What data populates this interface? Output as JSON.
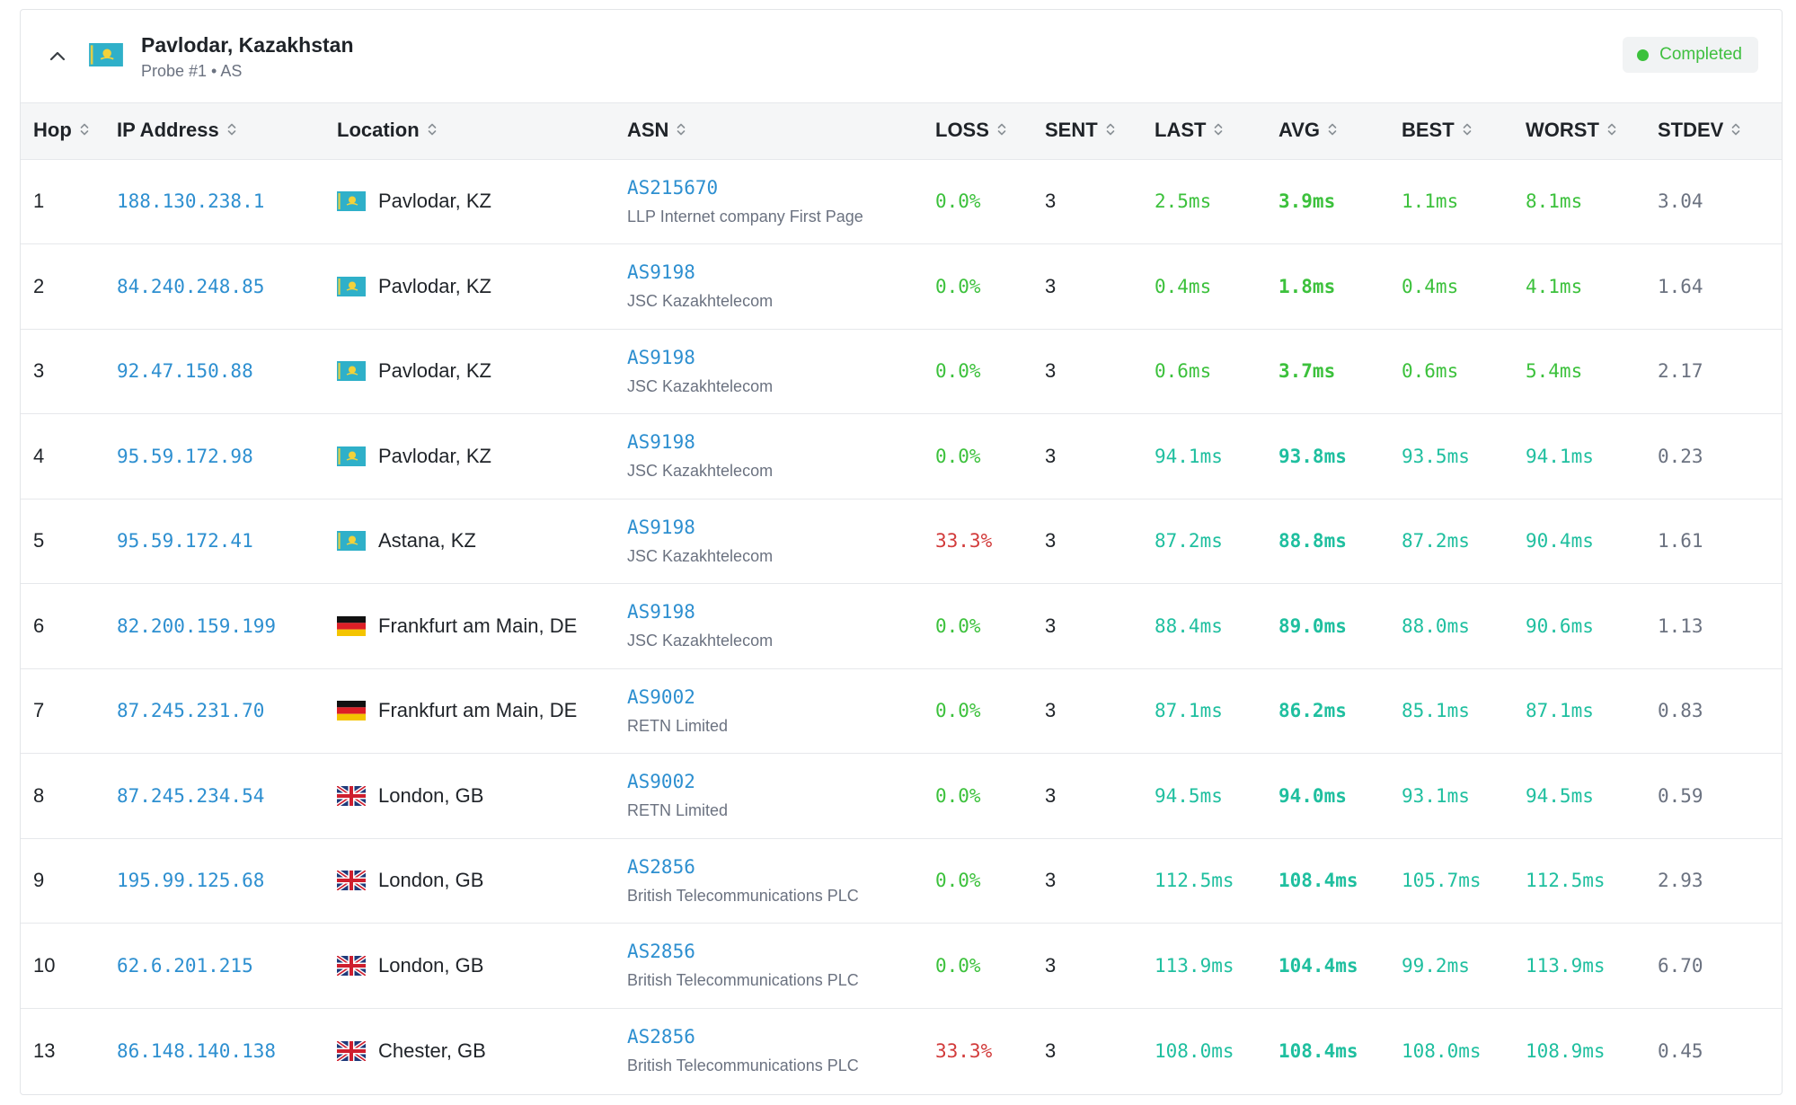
{
  "header": {
    "title": "Pavlodar, Kazakhstan",
    "subtitle": "Probe #1 • AS",
    "status": "Completed",
    "flag": "kz"
  },
  "colors": {
    "link": "#2d8fd0",
    "loss_good": "#3cc13c",
    "loss_bad": "#d23b3b",
    "latency_low": "#3cc13c",
    "latency_high": "#1fbf9f",
    "stdev": "#6b7280"
  },
  "columns": [
    "Hop",
    "IP Address",
    "Location",
    "ASN",
    "LOSS",
    "SENT",
    "LAST",
    "AVG",
    "BEST",
    "WORST",
    "STDEV"
  ],
  "rows": [
    {
      "hop": "1",
      "ip": "188.130.238.1",
      "flag": "kz",
      "location": "Pavlodar, KZ",
      "asn": "AS215670",
      "asn_name": "LLP Internet company First Page",
      "loss": "0.0%",
      "sent": "3",
      "last": "2.5ms",
      "avg": "3.9ms",
      "best": "1.1ms",
      "worst": "8.1ms",
      "stdev": "3.04",
      "loss_level": "good",
      "latency_level": "low"
    },
    {
      "hop": "2",
      "ip": "84.240.248.85",
      "flag": "kz",
      "location": "Pavlodar, KZ",
      "asn": "AS9198",
      "asn_name": "JSC Kazakhtelecom",
      "loss": "0.0%",
      "sent": "3",
      "last": "0.4ms",
      "avg": "1.8ms",
      "best": "0.4ms",
      "worst": "4.1ms",
      "stdev": "1.64",
      "loss_level": "good",
      "latency_level": "low"
    },
    {
      "hop": "3",
      "ip": "92.47.150.88",
      "flag": "kz",
      "location": "Pavlodar, KZ",
      "asn": "AS9198",
      "asn_name": "JSC Kazakhtelecom",
      "loss": "0.0%",
      "sent": "3",
      "last": "0.6ms",
      "avg": "3.7ms",
      "best": "0.6ms",
      "worst": "5.4ms",
      "stdev": "2.17",
      "loss_level": "good",
      "latency_level": "low"
    },
    {
      "hop": "4",
      "ip": "95.59.172.98",
      "flag": "kz",
      "location": "Pavlodar, KZ",
      "asn": "AS9198",
      "asn_name": "JSC Kazakhtelecom",
      "loss": "0.0%",
      "sent": "3",
      "last": "94.1ms",
      "avg": "93.8ms",
      "best": "93.5ms",
      "worst": "94.1ms",
      "stdev": "0.23",
      "loss_level": "good",
      "latency_level": "high"
    },
    {
      "hop": "5",
      "ip": "95.59.172.41",
      "flag": "kz",
      "location": "Astana, KZ",
      "asn": "AS9198",
      "asn_name": "JSC Kazakhtelecom",
      "loss": "33.3%",
      "sent": "3",
      "last": "87.2ms",
      "avg": "88.8ms",
      "best": "87.2ms",
      "worst": "90.4ms",
      "stdev": "1.61",
      "loss_level": "bad",
      "latency_level": "high"
    },
    {
      "hop": "6",
      "ip": "82.200.159.199",
      "flag": "de",
      "location": "Frankfurt am Main, DE",
      "asn": "AS9198",
      "asn_name": "JSC Kazakhtelecom",
      "loss": "0.0%",
      "sent": "3",
      "last": "88.4ms",
      "avg": "89.0ms",
      "best": "88.0ms",
      "worst": "90.6ms",
      "stdev": "1.13",
      "loss_level": "good",
      "latency_level": "high"
    },
    {
      "hop": "7",
      "ip": "87.245.231.70",
      "flag": "de",
      "location": "Frankfurt am Main, DE",
      "asn": "AS9002",
      "asn_name": "RETN Limited",
      "loss": "0.0%",
      "sent": "3",
      "last": "87.1ms",
      "avg": "86.2ms",
      "best": "85.1ms",
      "worst": "87.1ms",
      "stdev": "0.83",
      "loss_level": "good",
      "latency_level": "high"
    },
    {
      "hop": "8",
      "ip": "87.245.234.54",
      "flag": "gb",
      "location": "London, GB",
      "asn": "AS9002",
      "asn_name": "RETN Limited",
      "loss": "0.0%",
      "sent": "3",
      "last": "94.5ms",
      "avg": "94.0ms",
      "best": "93.1ms",
      "worst": "94.5ms",
      "stdev": "0.59",
      "loss_level": "good",
      "latency_level": "high"
    },
    {
      "hop": "9",
      "ip": "195.99.125.68",
      "flag": "gb",
      "location": "London, GB",
      "asn": "AS2856",
      "asn_name": "British Telecommunications PLC",
      "loss": "0.0%",
      "sent": "3",
      "last": "112.5ms",
      "avg": "108.4ms",
      "best": "105.7ms",
      "worst": "112.5ms",
      "stdev": "2.93",
      "loss_level": "good",
      "latency_level": "high"
    },
    {
      "hop": "10",
      "ip": "62.6.201.215",
      "flag": "gb",
      "location": "London, GB",
      "asn": "AS2856",
      "asn_name": "British Telecommunications PLC",
      "loss": "0.0%",
      "sent": "3",
      "last": "113.9ms",
      "avg": "104.4ms",
      "best": "99.2ms",
      "worst": "113.9ms",
      "stdev": "6.70",
      "loss_level": "good",
      "latency_level": "high"
    },
    {
      "hop": "13",
      "ip": "86.148.140.138",
      "flag": "gb",
      "location": "Chester, GB",
      "asn": "AS2856",
      "asn_name": "British Telecommunications PLC",
      "loss": "33.3%",
      "sent": "3",
      "last": "108.0ms",
      "avg": "108.4ms",
      "best": "108.0ms",
      "worst": "108.9ms",
      "stdev": "0.45",
      "loss_level": "bad",
      "latency_level": "high"
    }
  ]
}
